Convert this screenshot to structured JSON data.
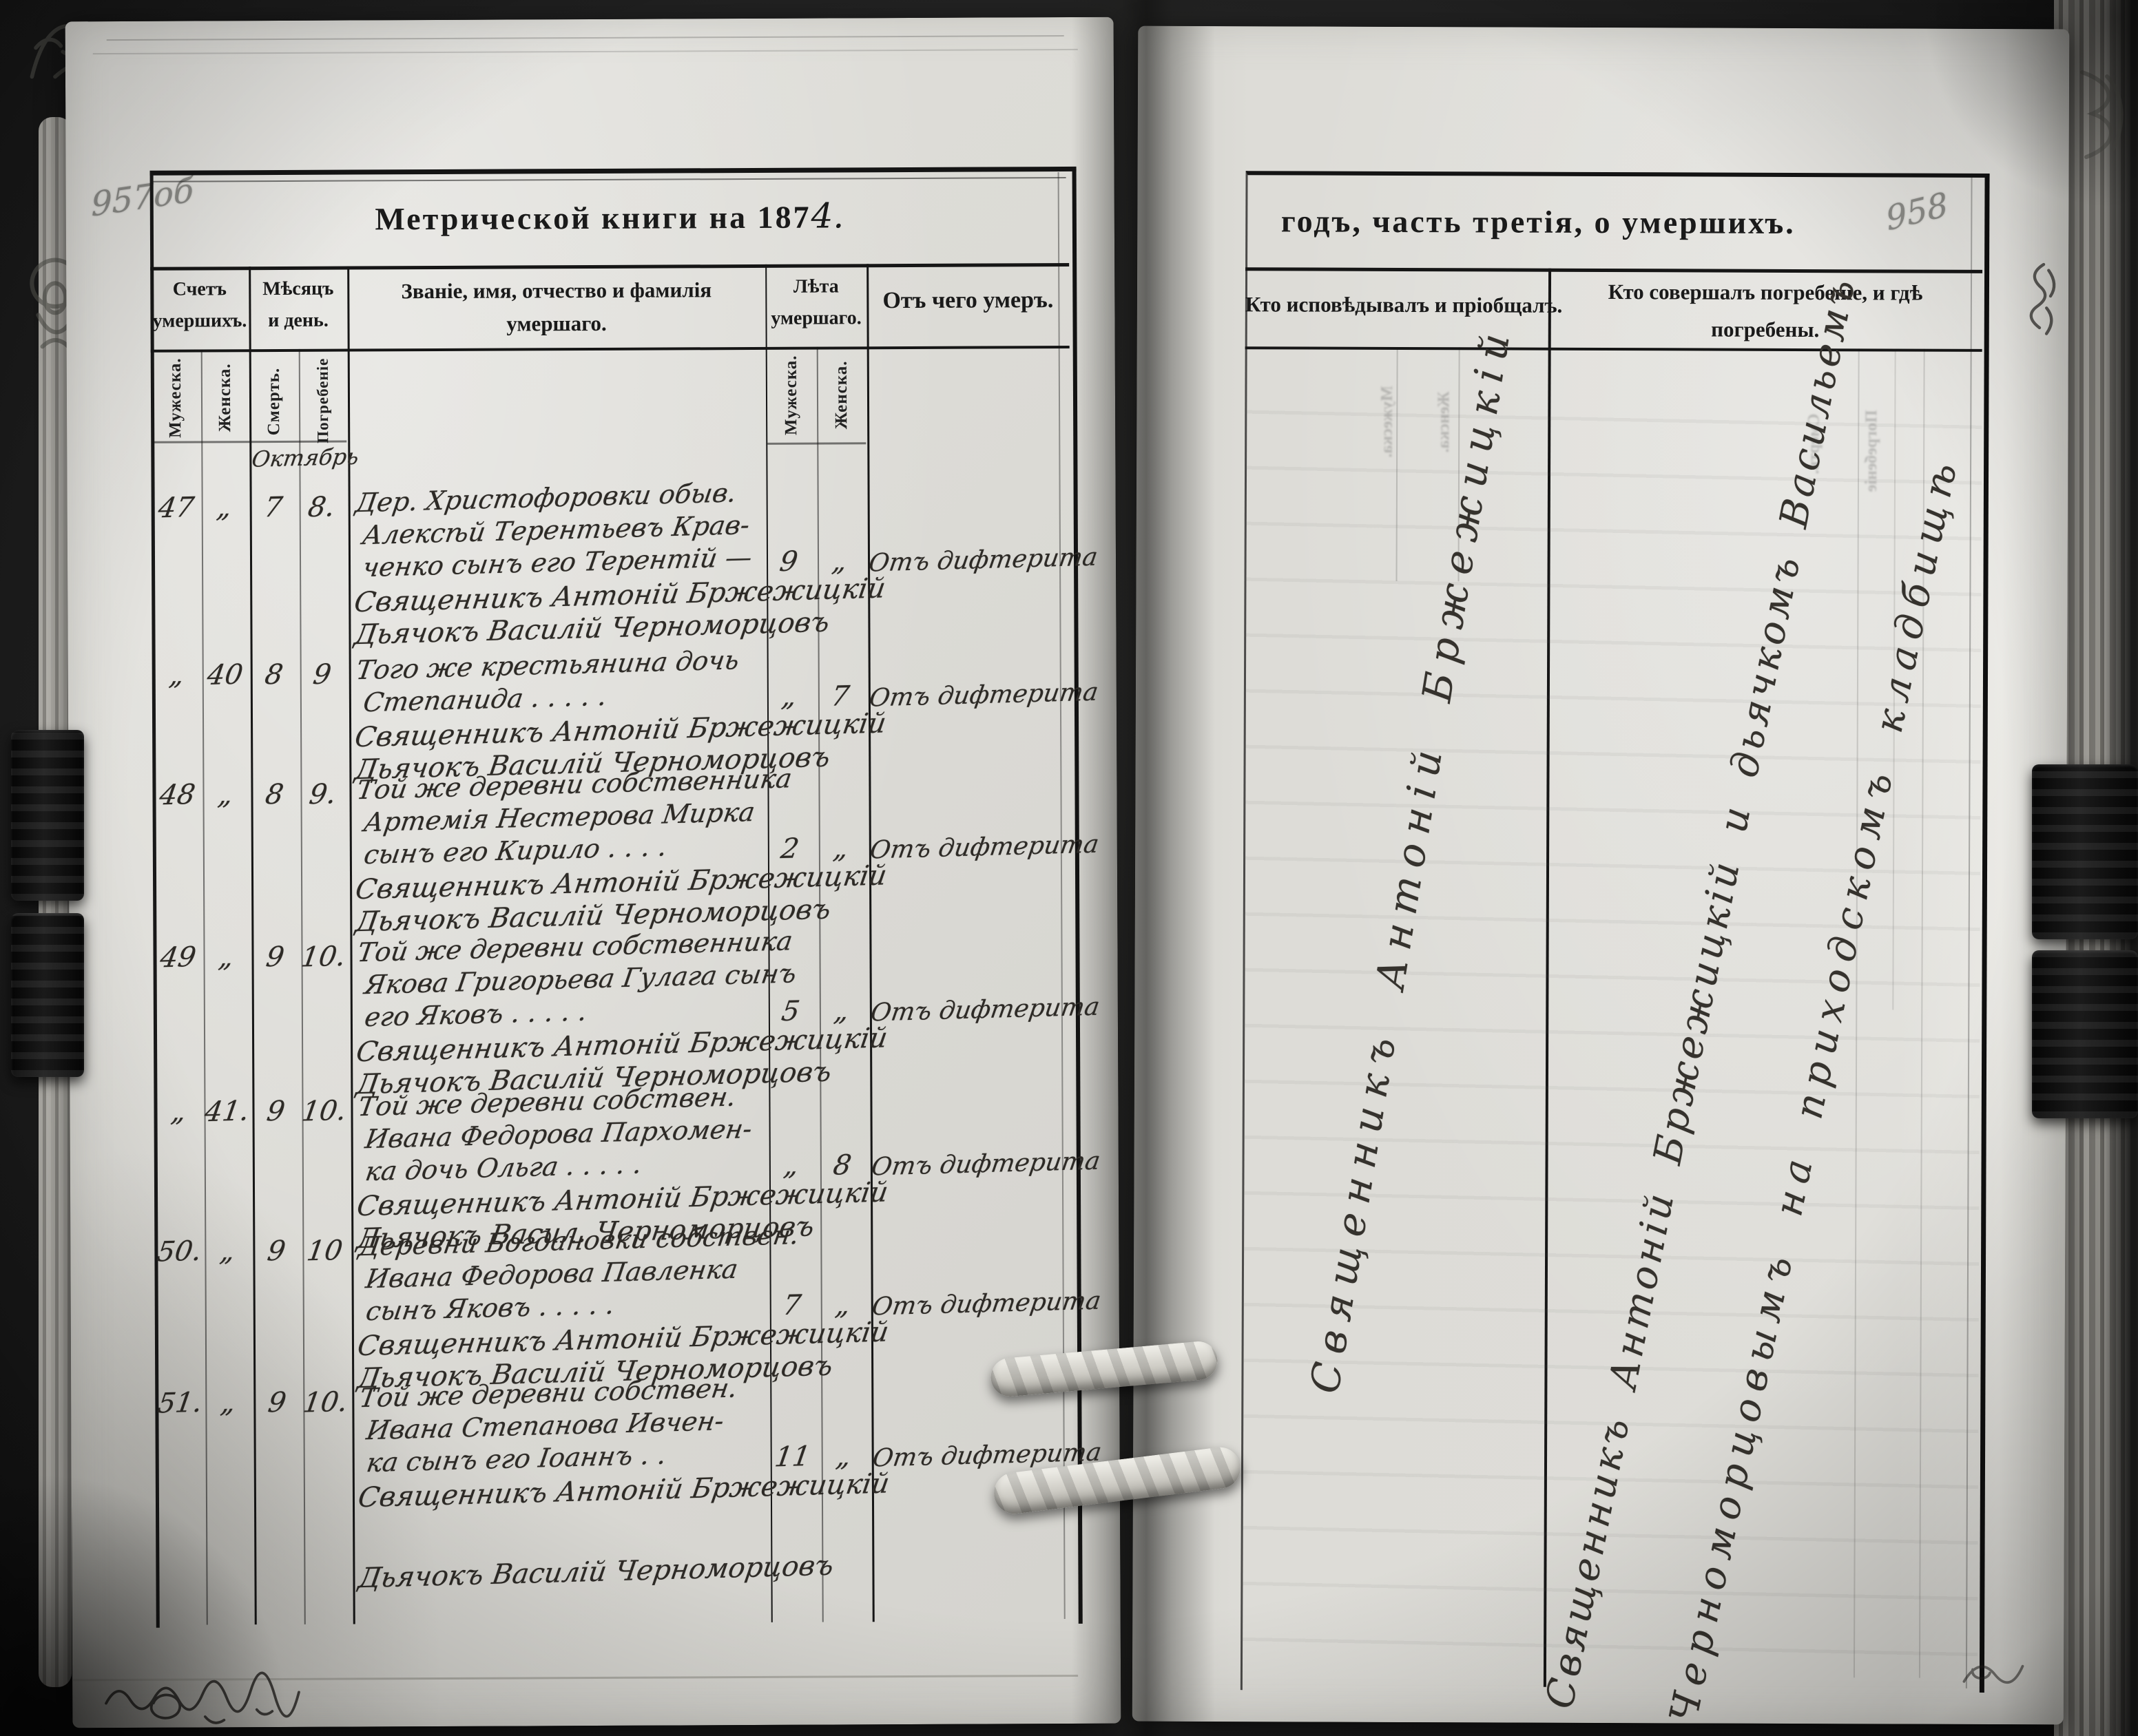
{
  "left_page": {
    "page_number": "957об",
    "title_printed": "Метрической книги на 187",
    "title_year_digit": "4.",
    "col_count_1": "Счетъ",
    "col_count_2": "умершихъ.",
    "col_date_1": "Мѣсяцъ",
    "col_date_2": "и день.",
    "col_name_1": "Званіе, имя, отчество и фамилія",
    "col_name_2": "умершаго.",
    "col_age_1": "Лѣта",
    "col_age_2": "умершаго.",
    "col_cause": "Отъ чего умеръ.",
    "sub_male": "Мужеска.",
    "sub_female": "Женска.",
    "sub_death": "Смерть.",
    "sub_burial": "Погребеніе",
    "sub_age_male": "Мужеска.",
    "sub_age_female": "Женска.",
    "month_header": "Октябрь",
    "entries": [
      {
        "no_male": "47",
        "no_female": "„",
        "death_day": "7",
        "burial_day": "8.",
        "desc_lines": [
          "Дер. Христофоровки обыв.",
          "Алексѣй Терентьевъ Крав-",
          "ченко сынъ его Терентій —"
        ],
        "age_male": "9",
        "age_female": "„",
        "cause": "Отъ дифтерита",
        "confessor": "Священникъ Антоній Бржежицкій",
        "clerk": "Дьячокъ Василій Черноморцовъ"
      },
      {
        "no_male": "„",
        "no_female": "40",
        "death_day": "8",
        "burial_day": "9",
        "desc_lines": [
          "Того же крестьянина дочь",
          "Степанида  .  .  .  .  ."
        ],
        "age_male": "„",
        "age_female": "7",
        "cause": "Отъ дифтерита",
        "confessor": "Священникъ Антоній Бржежицкій",
        "clerk": "Дьячокъ Василій Черноморцовъ"
      },
      {
        "no_male": "48",
        "no_female": "„",
        "death_day": "8",
        "burial_day": "9.",
        "desc_lines": [
          "Той же деревни собственника",
          "Артемія Нестерова Мирка",
          "сынъ его Кирило  .  .  .  ."
        ],
        "age_male": "2",
        "age_female": "„",
        "cause": "Отъ дифтерита",
        "confessor": "Священникъ Антоній Бржежицкій",
        "clerk": "Дьячокъ Василій Черноморцовъ"
      },
      {
        "no_male": "49",
        "no_female": "„",
        "death_day": "9",
        "burial_day": "10.",
        "desc_lines": [
          "Той же деревни собственника",
          "Якова Григорьева Гулага сынъ",
          "его Яковъ  .  .  .  .  ."
        ],
        "age_male": "5",
        "age_female": "„",
        "cause": "Отъ дифтерита",
        "confessor": "Священникъ Антоній Бржежицкій",
        "clerk": "Дьячокъ Василій Черноморцовъ"
      },
      {
        "no_male": "„",
        "no_female": "41.",
        "death_day": "9",
        "burial_day": "10.",
        "desc_lines": [
          "Той же деревни собствен.",
          "Ивана Федорова Пархомен-",
          "ка дочь Ольга  .  .  .  .  ."
        ],
        "age_male": "„",
        "age_female": "8",
        "cause": "Отъ дифтерита",
        "confessor": "Священникъ Антоній Бржежицкій",
        "clerk": "Дьячокъ Васил. Черноморцовъ"
      },
      {
        "no_male": "50.",
        "no_female": "„",
        "death_day": "9",
        "burial_day": "10",
        "desc_lines": [
          "Деревни Богдановки собствен.",
          "Ивана Федорова Павленка",
          "сынъ Яковъ  .  .  .  .  ."
        ],
        "age_male": "7",
        "age_female": "„",
        "cause": "Отъ дифтерита",
        "confessor": "Священникъ Антоній Бржежицкій",
        "clerk": "Дьячокъ Василій Черноморцовъ"
      },
      {
        "no_male": "51.",
        "no_female": "„",
        "death_day": "9",
        "burial_day": "10.",
        "desc_lines": [
          "Той же деревни собствен.",
          "Ивана Степанова Ивчен-",
          "ка сынъ его Іоаннъ  .  ."
        ],
        "age_male": "11",
        "age_female": "„",
        "cause": "Отъ дифтерита",
        "confessor": "Священникъ Антоній Бржежицкій",
        "clerk": "Дьячокъ Василій Черноморцовъ"
      }
    ]
  },
  "right_page": {
    "page_number": "958",
    "title": "годъ, часть третія, о умершихъ.",
    "col_confession": "Кто исповѣдывалъ и пріобщалъ.",
    "col_burial_1": "Кто совершалъ погребеніе, и гдѣ",
    "col_burial_2": "погребены.",
    "confession_text": "Священникъ Антоній Бржежицкій",
    "burial_text_1": "Священникъ Антоній Бржежицкій и дьячкомъ Васильемъ",
    "burial_text_2": "Черноморцовымъ на приходскомъ кладбищѣ",
    "bleed_labels": [
      "Погребеніе",
      "Смерть.",
      "Мужеска.",
      "Женска."
    ]
  }
}
